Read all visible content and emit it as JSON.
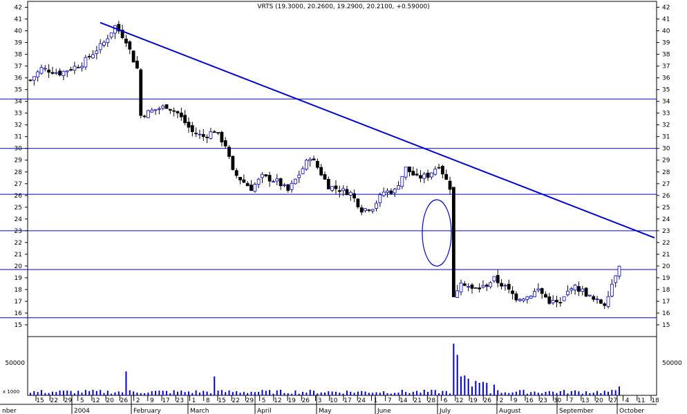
{
  "chart_data": {
    "type": "candlestick",
    "title": "VRTS (19.3000, 20.2600, 19.2900, 20.2100, +0.59000)",
    "ylim": [
      14,
      42.5
    ],
    "y_ticks": [
      15,
      16,
      17,
      18,
      19,
      20,
      21,
      22,
      23,
      24,
      25,
      26,
      27,
      28,
      29,
      30,
      31,
      32,
      33,
      34,
      35,
      36,
      37,
      38,
      39,
      40,
      41,
      42
    ],
    "volume": {
      "tick_label": "50000",
      "unit_label": "x 1000"
    },
    "x_day_ticks": [
      "15",
      "22",
      "29",
      "5",
      "12",
      "20",
      "26",
      "2",
      "9",
      "17",
      "23",
      "1",
      "8",
      "15",
      "22",
      "29",
      "5",
      "12",
      "19",
      "26",
      "3",
      "10",
      "17",
      "24",
      "1",
      "7",
      "14",
      "21",
      "28",
      "6",
      "12",
      "19",
      "26",
      "2",
      "9",
      "16",
      "23",
      "30",
      "7",
      "13",
      "20",
      "27",
      "4",
      "11",
      "18"
    ],
    "x_month_labels": [
      "nber",
      "2004",
      "February",
      "March",
      "April",
      "May",
      "June",
      "July",
      "August",
      "September",
      "October"
    ],
    "horizontal_levels": [
      34.2,
      30.0,
      26.1,
      23.0,
      19.7,
      15.6
    ],
    "trendline": {
      "from": {
        "date": "2004-01-14",
        "price": 40.7
      },
      "to": {
        "date": "2004-10-18",
        "price": 22.4
      }
    },
    "annotation": "ellipse marking price gap",
    "colors": {
      "price": "#0000cc",
      "volume": "#0000cc",
      "down_candle": "#000000",
      "up_candle": "#ffffff",
      "trendline": "#0000cc"
    },
    "ohlc_anchors": [
      {
        "i": 0,
        "c": 35.8
      },
      {
        "i": 3,
        "c": 36.8
      },
      {
        "i": 8,
        "c": 36.4
      },
      {
        "i": 14,
        "c": 37.2
      },
      {
        "i": 20,
        "c": 39.0
      },
      {
        "i": 23,
        "c": 40.4
      },
      {
        "i": 26,
        "c": 39.2
      },
      {
        "i": 28,
        "c": 37.5
      },
      {
        "i": 29,
        "c": 36.8
      },
      {
        "i": 30,
        "c": 32.8
      },
      {
        "i": 33,
        "c": 33.2
      },
      {
        "i": 37,
        "c": 33.6
      },
      {
        "i": 40,
        "c": 33.0
      },
      {
        "i": 44,
        "c": 31.4
      },
      {
        "i": 47,
        "c": 31.0
      },
      {
        "i": 50,
        "c": 31.5
      },
      {
        "i": 53,
        "c": 30.3
      },
      {
        "i": 55,
        "c": 28.0
      },
      {
        "i": 57,
        "c": 27.4
      },
      {
        "i": 60,
        "c": 26.6
      },
      {
        "i": 63,
        "c": 27.6
      },
      {
        "i": 67,
        "c": 27.2
      },
      {
        "i": 70,
        "c": 26.4
      },
      {
        "i": 73,
        "c": 27.8
      },
      {
        "i": 76,
        "c": 29.3
      },
      {
        "i": 78,
        "c": 28.4
      },
      {
        "i": 81,
        "c": 26.8
      },
      {
        "i": 84,
        "c": 26.5
      },
      {
        "i": 87,
        "c": 26.2
      },
      {
        "i": 90,
        "c": 24.8
      },
      {
        "i": 93,
        "c": 25.0
      },
      {
        "i": 96,
        "c": 26.3
      },
      {
        "i": 99,
        "c": 26.4
      },
      {
        "i": 102,
        "c": 28.3
      },
      {
        "i": 105,
        "c": 27.5
      },
      {
        "i": 108,
        "c": 27.7
      },
      {
        "i": 111,
        "c": 28.6
      },
      {
        "i": 113,
        "c": 27.3
      },
      {
        "i": 114,
        "c": 26.7
      },
      {
        "i": 115,
        "c": 17.3
      },
      {
        "i": 117,
        "c": 18.8
      },
      {
        "i": 120,
        "c": 18.0
      },
      {
        "i": 123,
        "c": 18.2
      },
      {
        "i": 126,
        "c": 18.9
      },
      {
        "i": 129,
        "c": 18.2
      },
      {
        "i": 132,
        "c": 17.3
      },
      {
        "i": 135,
        "c": 17.4
      },
      {
        "i": 138,
        "c": 18.0
      },
      {
        "i": 141,
        "c": 17.0
      },
      {
        "i": 144,
        "c": 16.8
      },
      {
        "i": 147,
        "c": 18.3
      },
      {
        "i": 150,
        "c": 17.9
      },
      {
        "i": 153,
        "c": 17.1
      },
      {
        "i": 156,
        "c": 16.8
      },
      {
        "i": 158,
        "c": 18.5
      },
      {
        "i": 160,
        "c": 20.2
      }
    ],
    "volume_anchors": [
      {
        "i": 0,
        "v": 4000
      },
      {
        "i": 26,
        "v": 38000
      },
      {
        "i": 50,
        "v": 30000
      },
      {
        "i": 115,
        "v": 82000
      },
      {
        "i": 117,
        "v": 30000
      },
      {
        "i": 120,
        "v": 14000
      },
      {
        "i": 126,
        "v": 17000
      },
      {
        "i": 160,
        "v": 14000
      }
    ]
  }
}
